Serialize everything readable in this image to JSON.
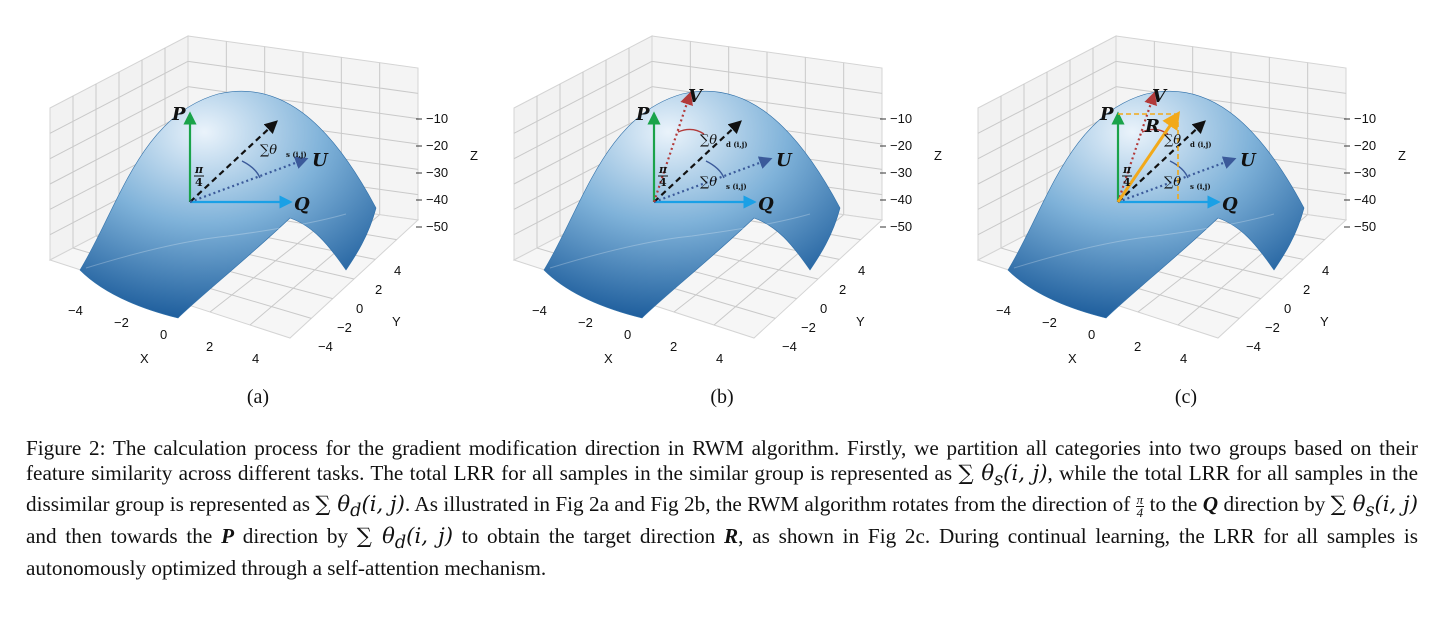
{
  "panels": [
    {
      "id": "a",
      "label": "(a)",
      "vectors": [
        "P",
        "Q",
        "U"
      ],
      "angles": [
        "π/4",
        "∑θ_s(i,j)"
      ]
    },
    {
      "id": "b",
      "label": "(b)",
      "vectors": [
        "P",
        "Q",
        "U",
        "V"
      ],
      "angles": [
        "π/4",
        "∑θ_d(i,j)",
        "∑θ_s(i,j)"
      ]
    },
    {
      "id": "c",
      "label": "(c)",
      "vectors": [
        "P",
        "Q",
        "U",
        "V",
        "R"
      ],
      "angles": [
        "π/4",
        "∑θ_d(i,j)",
        "∑θ_s(i,j)"
      ]
    }
  ],
  "axes": {
    "x_label": "X",
    "y_label": "Y",
    "z_label": "Z",
    "x_ticks": [
      "−4",
      "−2",
      "0",
      "2",
      "4"
    ],
    "y_ticks": [
      "−4",
      "−2",
      "0",
      "2",
      "4"
    ],
    "z_ticks": [
      "−10",
      "−20",
      "−30",
      "−40",
      "−50"
    ]
  },
  "glyphs": {
    "P": "P",
    "Q": "Q",
    "U": "U",
    "V": "V",
    "R": "R",
    "pi": "π",
    "four": "4",
    "theta_s": "∑θ",
    "theta_s_sub": "s (i,j)",
    "theta_d": "∑θ",
    "theta_d_sub": "d (i,j)"
  },
  "colors": {
    "surface_light": "#eaf3fb",
    "surface_mid": "#7fb2d9",
    "surface_dark": "#0d4f92",
    "P_arrow": "#1aa34a",
    "Q_arrow": "#1aa0e6",
    "U_arrow": "#3b5a9a",
    "V_arrow": "#b23a3a",
    "R_arrow": "#f2a91a",
    "mid_arrow": "#111111",
    "grid": "#c9c9c9"
  },
  "caption": {
    "s1": "Figure 2: The calculation process for the gradient modification direction in RWM algorithm. Firstly, we partition all categories into two groups based on their feature similarity across different tasks. The total LRR for all samples in the similar group is represented as ",
    "m1": "∑ θ",
    "m1_sub": "s",
    "m1_rest": "(i, j)",
    "s2": ", while the total LRR for all samples in the dissimilar group is represented as ",
    "m2": "∑ θ",
    "m2_sub": "d",
    "m2_rest": "(i, j)",
    "s3": ". As illustrated in Fig 2a and Fig 2b, the RWM algorithm rotates from the direction of ",
    "pi": "π",
    "four": "4",
    "s4": " to the ",
    "Q": "Q",
    "s5": " direction by ",
    "m3": "∑ θ",
    "m3_sub": "s",
    "m3_rest": "(i, j)",
    "s6": " and then towards the ",
    "P": "P",
    "s7": " direction by ",
    "m4": "∑ θ",
    "m4_sub": "d",
    "m4_rest": "(i, j)",
    "s8": " to obtain the target direction ",
    "R": "R",
    "s9": ", as shown in Fig 2c. During continual learning, the LRR for all samples is autonomously optimized through a self-attention mechanism."
  }
}
